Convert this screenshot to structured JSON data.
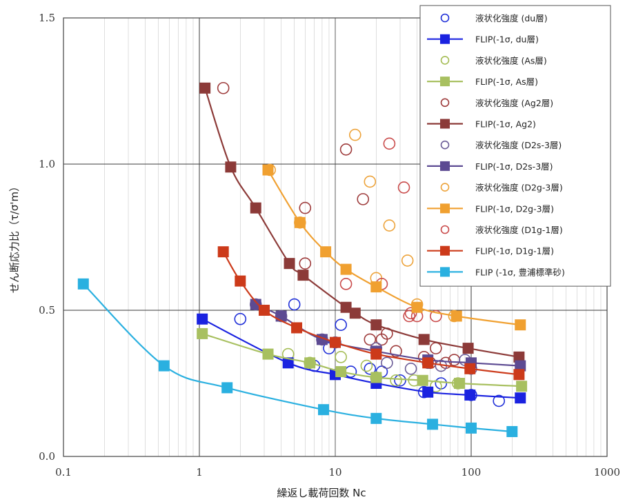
{
  "chart_data": {
    "type": "scatter",
    "title": "",
    "xlabel": "繰返し載荷回数 Nc",
    "ylabel": "せん断応力比（τ/σ'm）",
    "xscale": "log",
    "xlim": [
      0.1,
      1000
    ],
    "ylim": [
      0.0,
      1.5
    ],
    "x_ticks": [
      {
        "value": 0.1,
        "label": "0.1"
      },
      {
        "value": 1,
        "label": "1"
      },
      {
        "value": 10,
        "label": "10"
      },
      {
        "value": 100,
        "label": "100"
      },
      {
        "value": 1000,
        "label": "1000"
      }
    ],
    "y_ticks": [
      {
        "value": 0.0,
        "label": "0.0"
      },
      {
        "value": 0.5,
        "label": "0.5"
      },
      {
        "value": 1.0,
        "label": "1.0"
      },
      {
        "value": 1.5,
        "label": "1.5"
      }
    ],
    "grid": true,
    "legend_position": "top-right",
    "series": [
      {
        "name": "液状化強度 (du層)",
        "kind": "scatter",
        "marker": "circle-open",
        "color": "#1f2fd8",
        "points": [
          [
            2.0,
            0.47
          ],
          [
            5.0,
            0.52
          ],
          [
            7.0,
            0.31
          ],
          [
            9.0,
            0.37
          ],
          [
            11,
            0.45
          ],
          [
            13,
            0.29
          ],
          [
            18,
            0.3
          ],
          [
            22,
            0.29
          ],
          [
            30,
            0.26
          ],
          [
            45,
            0.22
          ],
          [
            60,
            0.25
          ],
          [
            100,
            0.21
          ],
          [
            160,
            0.19
          ]
        ]
      },
      {
        "name": "FLIP(-1σ, du層)",
        "kind": "line",
        "marker": "square",
        "color": "#1a22e0",
        "points": [
          [
            1.05,
            0.47
          ],
          [
            4.5,
            0.32
          ],
          [
            10,
            0.28
          ],
          [
            20,
            0.25
          ],
          [
            48,
            0.22
          ],
          [
            98,
            0.21
          ],
          [
            230,
            0.2
          ]
        ]
      },
      {
        "name": "液状化強度 (As層)",
        "kind": "scatter",
        "marker": "circle-open",
        "color": "#a5bd55",
        "points": [
          [
            4.5,
            0.35
          ],
          [
            6.5,
            0.32
          ],
          [
            11,
            0.34
          ],
          [
            17,
            0.31
          ],
          [
            20,
            0.27
          ],
          [
            28,
            0.26
          ],
          [
            38,
            0.26
          ],
          [
            55,
            0.24
          ],
          [
            80,
            0.25
          ]
        ]
      },
      {
        "name": "FLIP(-1σ, As層)",
        "kind": "line",
        "marker": "square",
        "color": "#a8c060",
        "points": [
          [
            1.05,
            0.42
          ],
          [
            3.2,
            0.35
          ],
          [
            6.5,
            0.32
          ],
          [
            11,
            0.29
          ],
          [
            20,
            0.27
          ],
          [
            44,
            0.26
          ],
          [
            82,
            0.25
          ],
          [
            235,
            0.24
          ]
        ]
      },
      {
        "name": "液状化強度 (Ag2層)",
        "kind": "scatter",
        "marker": "circle-open",
        "color": "#9e3b3b",
        "points": [
          [
            1.5,
            1.26
          ],
          [
            6,
            0.85
          ],
          [
            6,
            0.66
          ],
          [
            12,
            1.05
          ],
          [
            16,
            0.88
          ],
          [
            18,
            0.4
          ],
          [
            22,
            0.4
          ],
          [
            24,
            0.42
          ],
          [
            28,
            0.36
          ],
          [
            45,
            0.34
          ],
          [
            50,
            0.32
          ],
          [
            55,
            0.37
          ],
          [
            65,
            0.32
          ],
          [
            75,
            0.33
          ]
        ]
      },
      {
        "name": "FLIP(-1σ, Ag2)",
        "kind": "line",
        "marker": "square",
        "color": "#8c3a38",
        "points": [
          [
            1.1,
            1.26
          ],
          [
            1.7,
            0.99
          ],
          [
            2.6,
            0.85
          ],
          [
            4.6,
            0.66
          ],
          [
            5.8,
            0.62
          ],
          [
            12,
            0.51
          ],
          [
            14,
            0.49
          ],
          [
            20,
            0.45
          ],
          [
            45,
            0.4
          ],
          [
            95,
            0.37
          ],
          [
            225,
            0.34
          ]
        ]
      },
      {
        "name": "液状化強度 (D2s-3層)",
        "kind": "scatter",
        "marker": "circle-open",
        "color": "#6b5c97",
        "points": [
          [
            2.6,
            0.52
          ],
          [
            4.0,
            0.48
          ],
          [
            8.0,
            0.4
          ],
          [
            10,
            0.39
          ],
          [
            20,
            0.37
          ],
          [
            24,
            0.32
          ],
          [
            36,
            0.3
          ],
          [
            48,
            0.32
          ],
          [
            60,
            0.31
          ],
          [
            90,
            0.33
          ],
          [
            100,
            0.3
          ]
        ]
      },
      {
        "name": "FLIP(-1σ, D2s-3層)",
        "kind": "line",
        "marker": "square",
        "color": "#5c4a92",
        "points": [
          [
            2.6,
            0.52
          ],
          [
            4.0,
            0.48
          ],
          [
            8.0,
            0.4
          ],
          [
            20,
            0.36
          ],
          [
            48,
            0.33
          ],
          [
            100,
            0.32
          ],
          [
            230,
            0.31
          ]
        ]
      },
      {
        "name": "液状化強度 (D2g-3層)",
        "kind": "scatter",
        "marker": "circle-open",
        "color": "#eda33a",
        "points": [
          [
            3.3,
            0.98
          ],
          [
            5.5,
            0.8
          ],
          [
            14,
            1.1
          ],
          [
            18,
            0.94
          ],
          [
            20,
            0.61
          ],
          [
            25,
            0.79
          ],
          [
            34,
            0.67
          ],
          [
            40,
            0.52
          ],
          [
            75,
            0.48
          ]
        ]
      },
      {
        "name": "FLIP(-1σ, D2g-3層)",
        "kind": "line",
        "marker": "square",
        "color": "#f0a030",
        "points": [
          [
            3.2,
            0.98
          ],
          [
            5.5,
            0.8
          ],
          [
            8.5,
            0.7
          ],
          [
            12,
            0.64
          ],
          [
            20,
            0.58
          ],
          [
            40,
            0.51
          ],
          [
            78,
            0.48
          ],
          [
            230,
            0.45
          ]
        ]
      },
      {
        "name": "液状化強度 (D1g-1層)",
        "kind": "scatter",
        "marker": "circle-open",
        "color": "#c94a4a",
        "points": [
          [
            12,
            0.59
          ],
          [
            22,
            0.59
          ],
          [
            25,
            1.07
          ],
          [
            32,
            0.92
          ],
          [
            35,
            0.48
          ],
          [
            36,
            0.49
          ],
          [
            40,
            0.48
          ],
          [
            55,
            0.48
          ]
        ]
      },
      {
        "name": "FLIP(-1σ, D1g-1層)",
        "kind": "line",
        "marker": "square",
        "color": "#cc3a1a",
        "points": [
          [
            1.5,
            0.7
          ],
          [
            2.0,
            0.6
          ],
          [
            3.0,
            0.5
          ],
          [
            5.2,
            0.44
          ],
          [
            10,
            0.39
          ],
          [
            20,
            0.35
          ],
          [
            48,
            0.32
          ],
          [
            98,
            0.3
          ],
          [
            225,
            0.28
          ]
        ]
      },
      {
        "name": "FLIP (-1σ, 豊浦標準砂)",
        "kind": "line",
        "marker": "square",
        "color": "#2ab0e0",
        "points": [
          [
            0.14,
            0.59
          ],
          [
            0.55,
            0.31
          ],
          [
            1.6,
            0.235
          ],
          [
            8.2,
            0.16
          ],
          [
            20,
            0.13
          ],
          [
            52,
            0.11
          ],
          [
            100,
            0.097
          ],
          [
            200,
            0.085
          ]
        ]
      }
    ]
  }
}
